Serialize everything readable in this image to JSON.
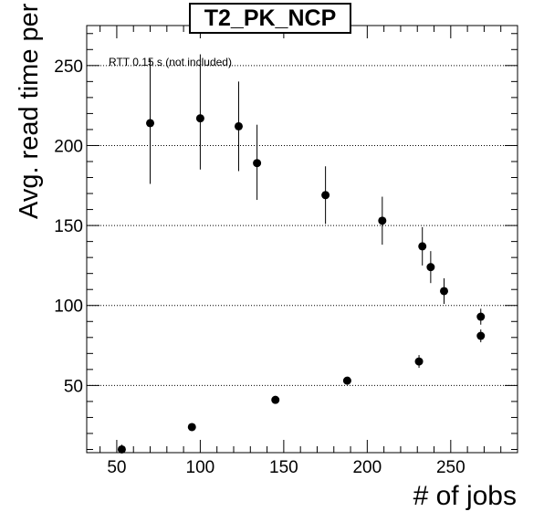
{
  "chart_data": {
    "type": "scatter",
    "title": "T2_PK_NCP",
    "xlabel": "# of jobs",
    "ylabel": "Avg. read time per block [s]",
    "annotation": "RTT 0.15 s (not included)",
    "xlim": [
      32,
      290
    ],
    "ylim": [
      8,
      275
    ],
    "xticks": [
      50,
      100,
      150,
      200,
      250
    ],
    "yticks": [
      50,
      100,
      150,
      200,
      250
    ],
    "grid": "y-dotted",
    "points": [
      {
        "x": 53,
        "y": 10,
        "yerr": 3
      },
      {
        "x": 70,
        "y": 214,
        "yerr_lo": 38,
        "yerr_hi": 40
      },
      {
        "x": 95,
        "y": 24,
        "yerr": 0
      },
      {
        "x": 100,
        "y": 217,
        "yerr_lo": 32,
        "yerr_hi": 40
      },
      {
        "x": 123,
        "y": 212,
        "yerr_lo": 28,
        "yerr_hi": 28
      },
      {
        "x": 134,
        "y": 189,
        "yerr_lo": 23,
        "yerr_hi": 24
      },
      {
        "x": 145,
        "y": 41,
        "yerr": 0
      },
      {
        "x": 175,
        "y": 169,
        "yerr_lo": 18,
        "yerr_hi": 18
      },
      {
        "x": 188,
        "y": 53,
        "yerr": 2
      },
      {
        "x": 209,
        "y": 153,
        "yerr_lo": 15,
        "yerr_hi": 15
      },
      {
        "x": 231,
        "y": 65,
        "yerr": 4
      },
      {
        "x": 233,
        "y": 137,
        "yerr_lo": 12,
        "yerr_hi": 12
      },
      {
        "x": 238,
        "y": 124,
        "yerr_lo": 10,
        "yerr_hi": 10
      },
      {
        "x": 246,
        "y": 109,
        "yerr_lo": 8,
        "yerr_hi": 8
      },
      {
        "x": 268,
        "y": 93,
        "yerr_lo": 5,
        "yerr_hi": 5
      },
      {
        "x": 268,
        "y": 81,
        "yerr_lo": 4,
        "yerr_hi": 4
      }
    ]
  }
}
